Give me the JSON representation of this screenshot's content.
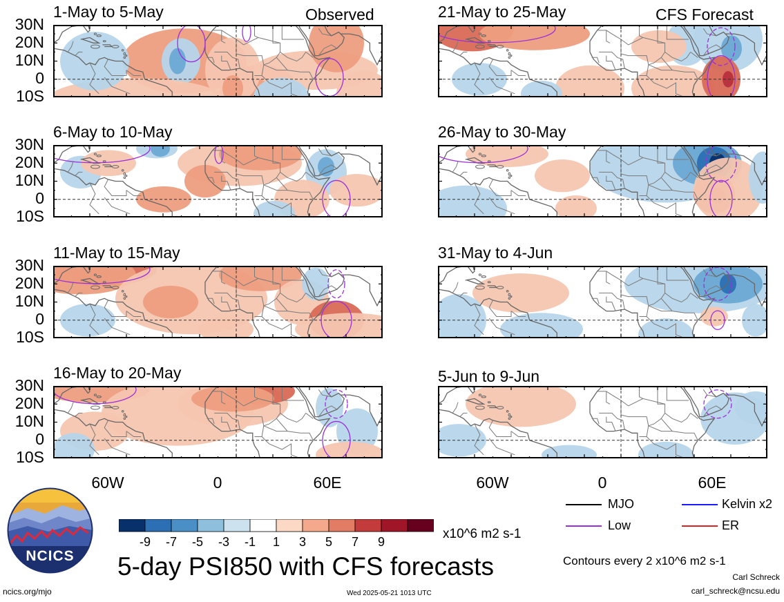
{
  "panels": [
    {
      "title": "1-May to 5-May",
      "label": "Observed",
      "col": 0,
      "row": 0,
      "blobs": [
        [
          "#ee9e80",
          190,
          10,
          90,
          20
        ],
        [
          "#ee9e80",
          300,
          -10,
          60,
          20
        ],
        [
          "#b6d5ea",
          185,
          10,
          28,
          14
        ],
        [
          "#6ca9d5",
          180,
          10,
          12,
          8
        ],
        [
          "#f5c6b0",
          260,
          5,
          40,
          20
        ],
        [
          "#f5c6b0",
          380,
          5,
          90,
          12
        ],
        [
          "#ee9e80",
          410,
          20,
          40,
          18
        ],
        [
          "#f5c6b0",
          120,
          -12,
          130,
          14
        ],
        [
          "#b6d5ea",
          60,
          10,
          50,
          18
        ],
        [
          "#ee9e80",
          260,
          -5,
          15,
          8
        ],
        [
          "#f5c6b0",
          450,
          -8,
          40,
          14
        ],
        [
          "#b6d5ea",
          330,
          -10,
          40,
          12
        ]
      ],
      "contours": [
        [
          400,
          1,
          20,
          8,
          false
        ],
        [
          200,
          20,
          20,
          8,
          false
        ],
        [
          280,
          26,
          6,
          4,
          false
        ]
      ]
    },
    {
      "title": "21-May to 25-May",
      "label": "CFS Forecast",
      "col": 1,
      "row": 0,
      "blobs": [
        [
          "#d96a57",
          50,
          28,
          60,
          14
        ],
        [
          "#ee9e80",
          140,
          25,
          80,
          10
        ],
        [
          "#f5c6b0",
          220,
          -5,
          50,
          14
        ],
        [
          "#f5c6b0",
          340,
          -5,
          60,
          14
        ],
        [
          "#b6d5ea",
          420,
          22,
          50,
          20
        ],
        [
          "#6ca9d5",
          425,
          17,
          15,
          8
        ],
        [
          "#b6d5ea",
          360,
          20,
          30,
          14
        ],
        [
          "#d96a57",
          410,
          0,
          28,
          14
        ],
        [
          "#b8303e",
          420,
          0,
          8,
          5
        ],
        [
          "#f5c6b0",
          320,
          18,
          40,
          10
        ],
        [
          "#b6d5ea",
          60,
          0,
          40,
          10
        ],
        [
          "#b6d5ea",
          150,
          -8,
          30,
          8
        ]
      ],
      "contours": [
        [
          410,
          0,
          20,
          10,
          false
        ],
        [
          410,
          18,
          20,
          8,
          true
        ],
        [
          80,
          28,
          90,
          6,
          false
        ]
      ]
    },
    {
      "title": "6-May to 10-May",
      "label": "",
      "col": 0,
      "row": 1,
      "blobs": [
        [
          "#f5c6b0",
          270,
          20,
          90,
          14
        ],
        [
          "#ee9e80",
          300,
          25,
          60,
          10
        ],
        [
          "#ee9e80",
          220,
          10,
          30,
          10
        ],
        [
          "#b6d5ea",
          150,
          28,
          30,
          6
        ],
        [
          "#6ca9d5",
          155,
          28,
          14,
          5
        ],
        [
          "#b6d5ea",
          395,
          15,
          30,
          14
        ],
        [
          "#6ca9d5",
          395,
          18,
          12,
          6
        ],
        [
          "#f5c6b0",
          360,
          0,
          40,
          12
        ],
        [
          "#ee9e80",
          160,
          0,
          40,
          8
        ],
        [
          "#b6d5ea",
          40,
          15,
          30,
          10
        ],
        [
          "#f5c6b0",
          80,
          20,
          40,
          8
        ],
        [
          "#f5c6b0",
          440,
          5,
          40,
          10
        ],
        [
          "#b6d5ea",
          320,
          -8,
          30,
          8
        ]
      ],
      "contours": [
        [
          410,
          0,
          20,
          8,
          false
        ],
        [
          240,
          25,
          6,
          4,
          false
        ],
        [
          60,
          28,
          80,
          6,
          false
        ]
      ]
    },
    {
      "title": "26-May to 30-May",
      "label": "",
      "col": 1,
      "row": 1,
      "blobs": [
        [
          "#b6d5ea",
          330,
          18,
          110,
          22
        ],
        [
          "#6ca9d5",
          390,
          20,
          50,
          14
        ],
        [
          "#2c6fb4",
          400,
          20,
          25,
          10
        ],
        [
          "#08306b",
          405,
          20,
          12,
          6
        ],
        [
          "#d96a57",
          400,
          3,
          30,
          12
        ],
        [
          "#b8303e",
          405,
          2,
          10,
          5
        ],
        [
          "#f5c6b0",
          420,
          5,
          50,
          20
        ],
        [
          "#b6d5ea",
          470,
          12,
          20,
          16
        ],
        [
          "#f5c6b0",
          180,
          13,
          40,
          10
        ],
        [
          "#f5c6b0",
          100,
          25,
          60,
          8
        ],
        [
          "#b6d5ea",
          40,
          -5,
          60,
          14
        ],
        [
          "#f5c6b0",
          200,
          -5,
          30,
          8
        ]
      ],
      "contours": [
        [
          410,
          0,
          16,
          8,
          false
        ],
        [
          410,
          20,
          22,
          8,
          true
        ],
        [
          60,
          28,
          70,
          6,
          false
        ]
      ]
    },
    {
      "title": "11-May to 15-May",
      "label": "",
      "col": 0,
      "row": 2,
      "blobs": [
        [
          "#d96a57",
          70,
          28,
          80,
          10
        ],
        [
          "#ee9e80",
          40,
          25,
          80,
          12
        ],
        [
          "#f5c6b0",
          200,
          12,
          110,
          22
        ],
        [
          "#ee9e80",
          170,
          10,
          40,
          10
        ],
        [
          "#ee9e80",
          300,
          25,
          60,
          10
        ],
        [
          "#f5c6b0",
          360,
          10,
          40,
          14
        ],
        [
          "#d96a57",
          410,
          0,
          40,
          12
        ],
        [
          "#f5c6b0",
          430,
          -5,
          80,
          10
        ],
        [
          "#b6d5ea",
          50,
          0,
          40,
          10
        ],
        [
          "#b6d5ea",
          380,
          20,
          20,
          10
        ],
        [
          "#f5c6b0",
          250,
          -5,
          40,
          8
        ]
      ],
      "contours": [
        [
          410,
          0,
          22,
          8,
          false
        ],
        [
          410,
          20,
          12,
          6,
          true
        ],
        [
          60,
          28,
          80,
          6,
          false
        ]
      ]
    },
    {
      "title": "31-May to 4-Jun",
      "label": "",
      "col": 1,
      "row": 2,
      "blobs": [
        [
          "#b6d5ea",
          380,
          20,
          110,
          18
        ],
        [
          "#6ca9d5",
          420,
          20,
          50,
          12
        ],
        [
          "#2c6fb4",
          420,
          20,
          12,
          6
        ],
        [
          "#f5c6b0",
          120,
          15,
          70,
          12
        ],
        [
          "#b6d5ea",
          150,
          -5,
          60,
          10
        ],
        [
          "#b6d5ea",
          330,
          -8,
          40,
          10
        ],
        [
          "#b6d5ea",
          30,
          0,
          40,
          16
        ],
        [
          "#f5c6b0",
          400,
          2,
          20,
          6
        ],
        [
          "#b6d5ea",
          460,
          0,
          20,
          10
        ]
      ],
      "contours": [
        [
          405,
          0,
          10,
          4,
          false
        ],
        [
          405,
          20,
          20,
          7,
          true
        ]
      ]
    },
    {
      "title": "16-May to 20-May",
      "label": "",
      "col": 0,
      "row": 3,
      "blobs": [
        [
          "#ee9e80",
          60,
          28,
          80,
          8
        ],
        [
          "#f5c6b0",
          180,
          15,
          110,
          20
        ],
        [
          "#f5c6b0",
          260,
          20,
          80,
          14
        ],
        [
          "#d96a57",
          300,
          27,
          50,
          8
        ],
        [
          "#ee9e80",
          260,
          23,
          60,
          8
        ],
        [
          "#b6d5ea",
          400,
          18,
          20,
          12
        ],
        [
          "#b6d5ea",
          440,
          5,
          30,
          14
        ],
        [
          "#f5c6b0",
          60,
          5,
          50,
          12
        ],
        [
          "#b6d5ea",
          30,
          -5,
          30,
          10
        ],
        [
          "#f5c6b0",
          430,
          -8,
          50,
          8
        ]
      ],
      "contours": [
        [
          410,
          0,
          20,
          8,
          false
        ],
        [
          410,
          20,
          16,
          6,
          true
        ],
        [
          60,
          28,
          60,
          6,
          false
        ]
      ]
    },
    {
      "title": "5-Jun to 9-Jun",
      "label": "",
      "col": 1,
      "row": 3,
      "blobs": [
        [
          "#f5c6b0",
          120,
          20,
          80,
          14
        ],
        [
          "#b6d5ea",
          430,
          12,
          50,
          16
        ],
        [
          "#b6d5ea",
          460,
          18,
          30,
          10
        ],
        [
          "#b6d5ea",
          30,
          0,
          40,
          10
        ],
        [
          "#b6d5ea",
          330,
          -8,
          40,
          8
        ],
        [
          "#b6d5ea",
          190,
          -8,
          40,
          6
        ]
      ],
      "contours": [
        [
          405,
          20,
          20,
          6,
          true
        ]
      ]
    }
  ],
  "lat_labels": [
    "30N",
    "20N",
    "10N",
    "0",
    "10S"
  ],
  "lon_labels": [
    "60W",
    "0",
    "60E"
  ],
  "colorbar": {
    "colors": [
      "#08306b",
      "#2c6fb4",
      "#4a8fc6",
      "#8ec0de",
      "#cce2ef",
      "#ffffff",
      "#fcd9c5",
      "#f5a98c",
      "#e27c64",
      "#c33c3b",
      "#a01527",
      "#67001f"
    ],
    "labels": [
      "-9",
      "-7",
      "-5",
      "-3",
      "-1",
      "1",
      "3",
      "5",
      "7",
      "9"
    ],
    "units": "x10^6 m2 s-1"
  },
  "legend": {
    "items": [
      {
        "label": "MJO",
        "color": "#000000"
      },
      {
        "label": "Kelvin x2",
        "color": "#1a1aff"
      },
      {
        "label": "Low",
        "color": "#9b30d9"
      },
      {
        "label": "ER",
        "color": "#e02020"
      }
    ],
    "contour_note": "Contours every 2 x10^6 m2 s-1"
  },
  "logo_text": "NCICS",
  "main_title": "5-day PSI850 with CFS forecasts",
  "footer": {
    "url": "ncics.org/mjo",
    "timestamp": "Wed 2025-05-21 1013 UTC",
    "author": "Carl Schreck",
    "email": "carl_schreck@ncsu.edu"
  }
}
